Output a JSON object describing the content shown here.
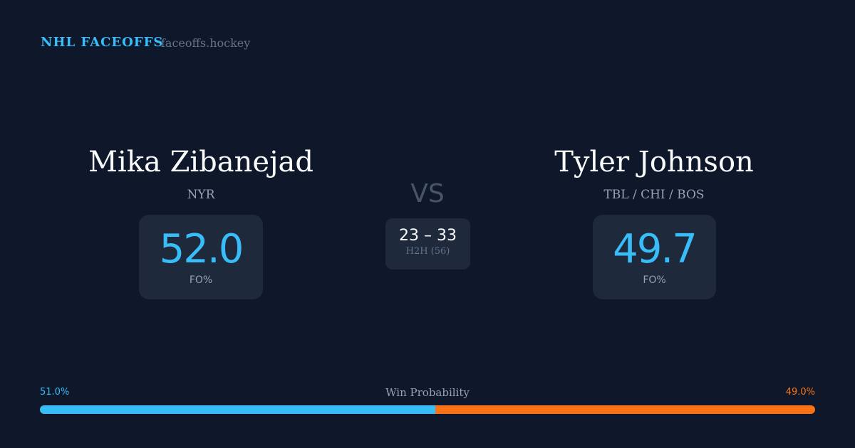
{
  "header": {
    "brand": "NHL FACEOFFS",
    "site": "faceoffs.hockey"
  },
  "player1": {
    "name": "Mika Zibanejad",
    "team": "NYR",
    "fo_pct": "52.0",
    "fo_label": "FO%"
  },
  "player2": {
    "name": "Tyler Johnson",
    "team": "TBL / CHI / BOS",
    "fo_pct": "49.7",
    "fo_label": "FO%"
  },
  "vs": "VS",
  "h2h": {
    "score": "23 – 33",
    "label": "H2H (56)"
  },
  "win_probability": {
    "label": "Win Probability",
    "left_label": "51.0%",
    "right_label": "49.0%",
    "left": 51.0,
    "right": 49.0,
    "left_color": "#38bdf8",
    "right_color": "#f97316"
  }
}
